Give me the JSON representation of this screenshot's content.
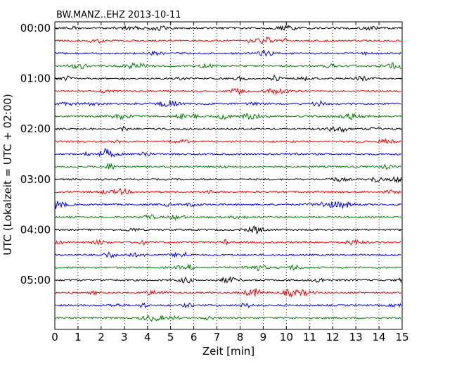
{
  "chart_data": {
    "type": "line",
    "title": "BW.MANZ..EHZ 2013-10-11",
    "xlabel": "Zeit  [min]",
    "ylabel": "UTC (Lokalzeit = UTC + 02:00)",
    "xlim": [
      0,
      15
    ],
    "xticks": [
      "0",
      "1",
      "2",
      "3",
      "4",
      "5",
      "6",
      "7",
      "8",
      "9",
      "10",
      "11",
      "12",
      "13",
      "14",
      "15"
    ],
    "y_tick_labels": [
      "00:00",
      "01:00",
      "02:00",
      "03:00",
      "04:00",
      "05:00"
    ],
    "grid": "vertical dotted",
    "trace_colors": [
      "#000000",
      "#ff0000",
      "#0000ff",
      "#008000"
    ],
    "traces": [
      {
        "start": "00:00"
      },
      {
        "start": "00:15"
      },
      {
        "start": "00:30"
      },
      {
        "start": "00:45"
      },
      {
        "start": "01:00"
      },
      {
        "start": "01:15"
      },
      {
        "start": "01:30"
      },
      {
        "start": "01:45"
      },
      {
        "start": "02:00"
      },
      {
        "start": "02:15"
      },
      {
        "start": "02:30"
      },
      {
        "start": "02:45"
      },
      {
        "start": "03:00"
      },
      {
        "start": "03:15"
      },
      {
        "start": "03:30"
      },
      {
        "start": "03:45"
      },
      {
        "start": "04:00"
      },
      {
        "start": "04:15"
      },
      {
        "start": "04:30"
      },
      {
        "start": "04:45"
      },
      {
        "start": "05:00"
      },
      {
        "start": "05:15"
      },
      {
        "start": "05:30"
      },
      {
        "start": "05:45"
      }
    ]
  }
}
